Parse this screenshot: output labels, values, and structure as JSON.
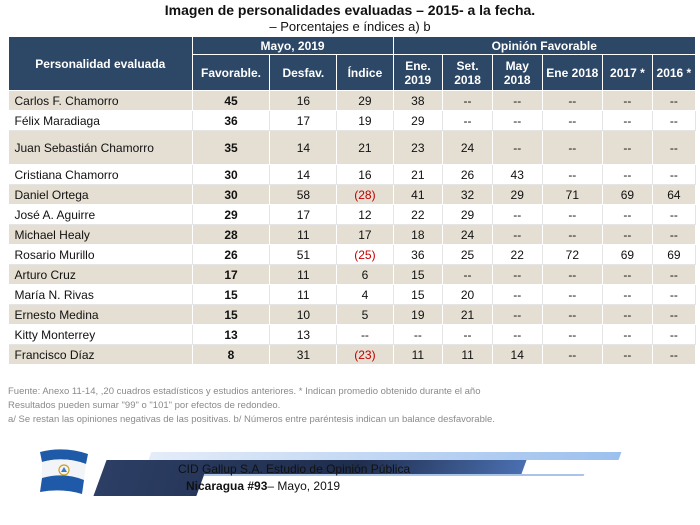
{
  "header": {
    "title": "Imagen de personalidades evaluadas – 2015- a la fecha.",
    "subtitle": "– Porcentajes e índices a) b"
  },
  "table": {
    "group_headers": {
      "personality": "Personalidad evaluada",
      "current": "Mayo, 2019",
      "history": "Opinión Favorable"
    },
    "sub_headers": [
      "Favorable.",
      "Desfav.",
      "Índice",
      "Ene. 2019",
      "Set. 2018",
      "May 2018",
      "Ene 2018",
      "2017 *",
      "2016 *"
    ],
    "rows": [
      {
        "name": "Carlos F. Chamorro",
        "fav": "45",
        "desf": "16",
        "idx": "29",
        "ene19": "38",
        "set18": "--",
        "may18": "--",
        "ene18": "--",
        "y2017": "--",
        "y2016": "--"
      },
      {
        "name": "Félix Maradiaga",
        "fav": "36",
        "desf": "17",
        "idx": "19",
        "ene19": "29",
        "set18": "--",
        "may18": "--",
        "ene18": "--",
        "y2017": "--",
        "y2016": "--"
      },
      {
        "name": "Juan Sebastián Chamorro",
        "fav": "35",
        "desf": "14",
        "idx": "21",
        "ene19": "23",
        "set18": "24",
        "may18": "--",
        "ene18": "--",
        "y2017": "--",
        "y2016": "--"
      },
      {
        "name": "Cristiana Chamorro",
        "fav": "30",
        "desf": "14",
        "idx": "16",
        "ene19": "21",
        "set18": "26",
        "may18": "43",
        "ene18": "--",
        "y2017": "--",
        "y2016": "--"
      },
      {
        "name": "Daniel Ortega",
        "fav": "30",
        "desf": "58",
        "idx": "(28)",
        "ene19": "41",
        "set18": "32",
        "may18": "29",
        "ene18": "71",
        "y2017": "69",
        "y2016": "64"
      },
      {
        "name": "José A. Aguirre",
        "fav": "29",
        "desf": "17",
        "idx": "12",
        "ene19": "22",
        "set18": "29",
        "may18": "--",
        "ene18": "--",
        "y2017": "--",
        "y2016": "--"
      },
      {
        "name": "Michael Healy",
        "fav": "28",
        "desf": "11",
        "idx": "17",
        "ene19": "18",
        "set18": "24",
        "may18": "--",
        "ene18": "--",
        "y2017": "--",
        "y2016": "--"
      },
      {
        "name": "Rosario Murillo",
        "fav": "26",
        "desf": "51",
        "idx": "(25)",
        "ene19": "36",
        "set18": "25",
        "may18": "22",
        "ene18": "72",
        "y2017": "69",
        "y2016": "69"
      },
      {
        "name": "Arturo Cruz",
        "fav": "17",
        "desf": "11",
        "idx": "6",
        "ene19": "15",
        "set18": "--",
        "may18": "--",
        "ene18": "--",
        "y2017": "--",
        "y2016": "--"
      },
      {
        "name": "María N. Rivas",
        "fav": "15",
        "desf": "11",
        "idx": "4",
        "ene19": "15",
        "set18": "20",
        "may18": "--",
        "ene18": "--",
        "y2017": "--",
        "y2016": "--"
      },
      {
        "name": "Ernesto Medina",
        "fav": "15",
        "desf": "10",
        "idx": "5",
        "ene19": "19",
        "set18": "21",
        "may18": "--",
        "ene18": "--",
        "y2017": "--",
        "y2016": "--"
      },
      {
        "name": "Kitty Monterrey",
        "fav": "13",
        "desf": "13",
        "idx": "--",
        "ene19": "--",
        "set18": "--",
        "may18": "--",
        "ene18": "--",
        "y2017": "--",
        "y2016": "--"
      },
      {
        "name": "Francisco Díaz",
        "fav": "8",
        "desf": "31",
        "idx": "(23)",
        "ene19": "11",
        "set18": "11",
        "may18": "14",
        "ene18": "--",
        "y2017": "--",
        "y2016": "--"
      }
    ]
  },
  "notes": [
    "Fuente: Anexo 11-14, ,20 cuadros estadísticos y estudios anteriores. * Indican promedio obtenido durante el año",
    "Resultados pueden sumar \"99\" o \"101\" por efectos de redondeo.",
    "a/ Se restan las opiniones negativas de las positivas. b/ Números entre paréntesis indican un balance desfavorable."
  ],
  "footer": {
    "line1": "CID Gallup S.A. Estudio de Opinión Pública",
    "line2_bold": "Nicaragua #93",
    "line2_rest": "– Mayo, 2019"
  },
  "colors": {
    "header_bg": "#2d4766",
    "row_shade": "#e5ded2",
    "negative": "#c00000",
    "flag_blue": "#1e5aa8"
  }
}
